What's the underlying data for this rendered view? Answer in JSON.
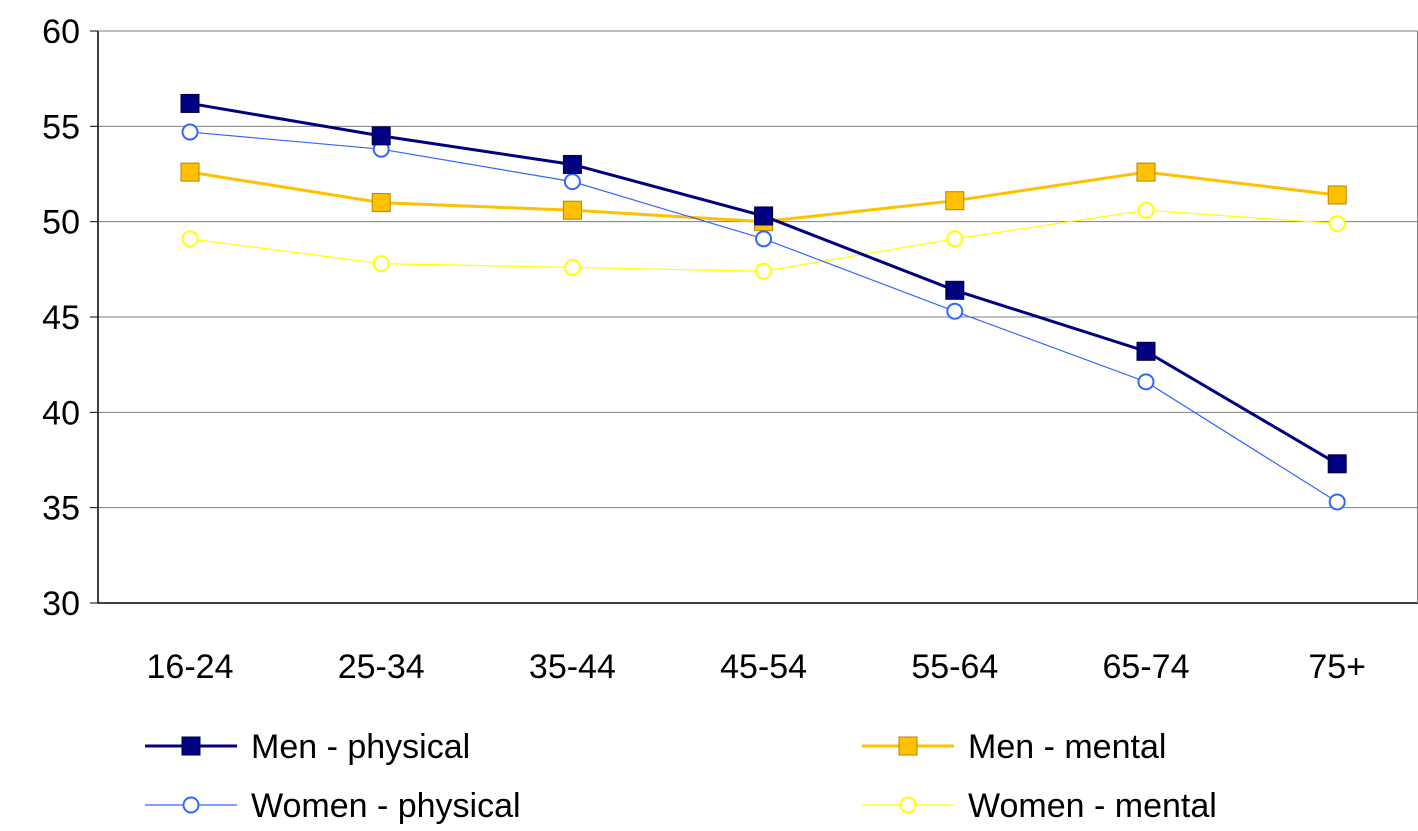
{
  "chart_data": {
    "type": "line",
    "categories": [
      "16-24",
      "25-34",
      "35-44",
      "45-54",
      "55-64",
      "65-74",
      "75+"
    ],
    "ylim": [
      30,
      60
    ],
    "yticks": [
      30,
      35,
      40,
      45,
      50,
      55,
      60
    ],
    "grid": true,
    "legend_position": "bottom",
    "series": [
      {
        "name": "Men - physical",
        "values": [
          56.2,
          54.5,
          53.0,
          50.3,
          46.4,
          43.2,
          37.3
        ],
        "color": "#000080",
        "marker": "filled-square"
      },
      {
        "name": "Men - mental",
        "values": [
          52.6,
          51.0,
          50.6,
          50.0,
          51.1,
          52.6,
          51.4
        ],
        "color": "#FFC000",
        "marker": "filled-square"
      },
      {
        "name": "Women - physical",
        "values": [
          54.7,
          53.8,
          52.1,
          49.1,
          45.3,
          41.6,
          35.3
        ],
        "color": "#3366FF",
        "marker": "open-circle"
      },
      {
        "name": "Women - mental",
        "values": [
          49.1,
          47.8,
          47.6,
          47.4,
          49.1,
          50.6,
          49.9
        ],
        "color": "#FFFF00",
        "marker": "open-circle"
      }
    ]
  }
}
